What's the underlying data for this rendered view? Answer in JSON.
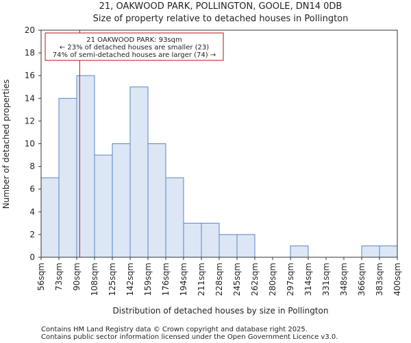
{
  "chart_data": {
    "type": "bar",
    "title_line1": "21, OAKWOOD PARK, POLLINGTON, GOOLE, DN14 0DB",
    "title_line2": "Size of property relative to detached houses in Pollington",
    "xlabel": "Distribution of detached houses by size in Pollington",
    "ylabel": "Number of detached properties",
    "ylim": [
      0,
      20
    ],
    "yticks": [
      0,
      2,
      4,
      6,
      8,
      10,
      12,
      14,
      16,
      18,
      20
    ],
    "bin_edges": [
      56,
      73,
      90,
      108,
      125,
      142,
      159,
      176,
      194,
      211,
      228,
      245,
      262,
      280,
      297,
      314,
      331,
      348,
      366,
      383,
      400
    ],
    "tick_labels": [
      "56sqm",
      "73sqm",
      "90sqm",
      "108sqm",
      "125sqm",
      "142sqm",
      "159sqm",
      "176sqm",
      "194sqm",
      "211sqm",
      "228sqm",
      "245sqm",
      "262sqm",
      "280sqm",
      "297sqm",
      "314sqm",
      "331sqm",
      "348sqm",
      "366sqm",
      "383sqm",
      "400sqm"
    ],
    "values": [
      7,
      14,
      16,
      9,
      10,
      15,
      10,
      7,
      3,
      3,
      2,
      2,
      0,
      0,
      1,
      0,
      0,
      0,
      1,
      1
    ],
    "marker_value": 93,
    "bar_color": "#dce6f5",
    "bar_edge_color": "#5a85c4",
    "marker_color": "#bb1111",
    "annotation": {
      "line1": "21 OAKWOOD PARK: 93sqm",
      "line2": "← 23% of detached houses are smaller (23)",
      "line3": "74% of semi-detached houses are larger (74) →"
    }
  },
  "footer": {
    "line1": "Contains HM Land Registry data © Crown copyright and database right 2025.",
    "line2": "Contains public sector information licensed under the Open Government Licence v3.0."
  }
}
